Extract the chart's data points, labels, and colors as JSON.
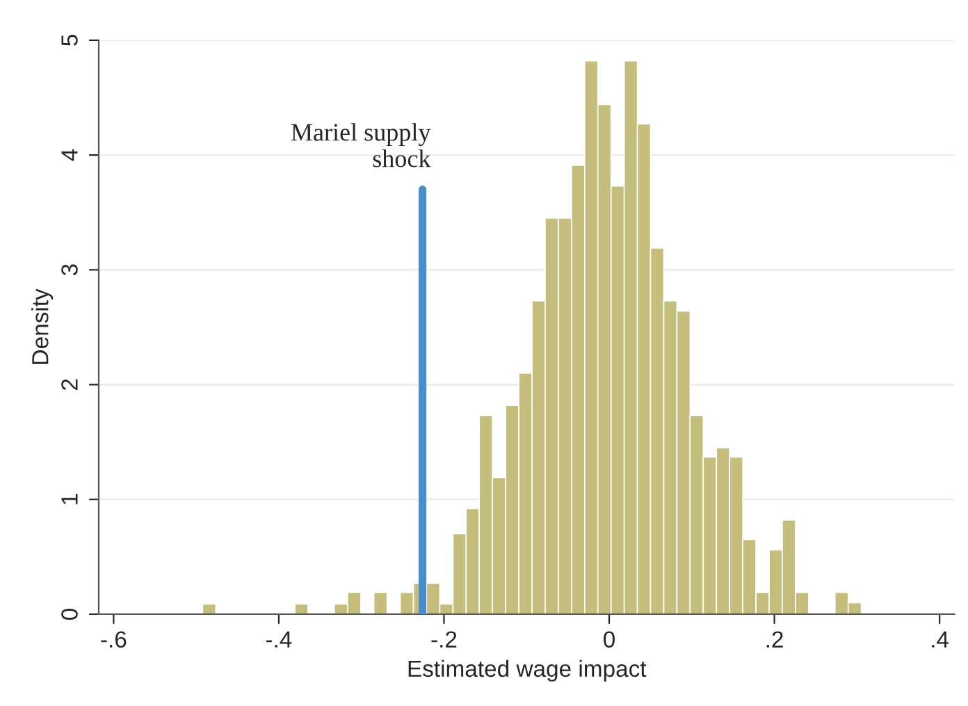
{
  "chart_data": {
    "type": "histogram",
    "xlabel": "Estimated wage impact",
    "ylabel": "Density",
    "bins": [
      -0.4922,
      -0.47625,
      -0.4603,
      -0.44435,
      -0.4284,
      -0.41245,
      -0.3965,
      -0.38055,
      -0.3646,
      -0.34865,
      -0.3327,
      -0.31675,
      -0.3008,
      -0.28485,
      -0.2689,
      -0.25295,
      -0.237,
      -0.22105,
      -0.2051,
      -0.18915,
      -0.1732,
      -0.15725,
      -0.1413,
      -0.12535,
      -0.1094,
      -0.09345,
      -0.0775,
      -0.06155,
      -0.0456,
      -0.02965,
      -0.0137,
      0.00225,
      0.0182,
      0.03415,
      0.0501,
      0.06605,
      0.082,
      0.09795,
      0.1139,
      0.12985,
      0.1458,
      0.16175,
      0.1777,
      0.19365,
      0.2096,
      0.22555,
      0.2415,
      0.25745,
      0.2734,
      0.28935,
      0.3053
    ],
    "values": [
      0.09,
      0,
      0,
      0,
      0,
      0,
      0,
      0.09,
      0,
      0,
      0.09,
      0.19,
      0,
      0.19,
      0,
      0.19,
      0.27,
      0.27,
      0.09,
      0.7,
      0.92,
      1.73,
      1.19,
      1.82,
      2.1,
      2.73,
      3.45,
      3.45,
      3.91,
      4.82,
      4.44,
      3.73,
      4.82,
      4.27,
      3.19,
      2.73,
      2.64,
      1.73,
      1.37,
      1.45,
      1.37,
      0.65,
      0.19,
      0.56,
      0.82,
      0.19,
      0,
      0,
      0.19,
      0.1
    ],
    "color": "#c4bd7b",
    "xlim": [
      -0.618,
      0.418
    ],
    "xticks": [
      {
        "value": -0.6,
        "label": "-.6"
      },
      {
        "value": -0.4,
        "label": "-.4"
      },
      {
        "value": -0.2,
        "label": "-.2"
      },
      0,
      {
        "value": 0.2,
        "label": ".2"
      },
      {
        "value": 0.4,
        "label": ".4"
      }
    ],
    "ylim": [
      0,
      5
    ],
    "yticks": [
      0,
      1,
      2,
      3,
      4,
      5
    ],
    "grid": "y",
    "ref_lines": [
      {
        "axis": "x",
        "value": -0.226,
        "label": "Mariel supply\nshock",
        "color": "#4a8ccc"
      }
    ]
  }
}
